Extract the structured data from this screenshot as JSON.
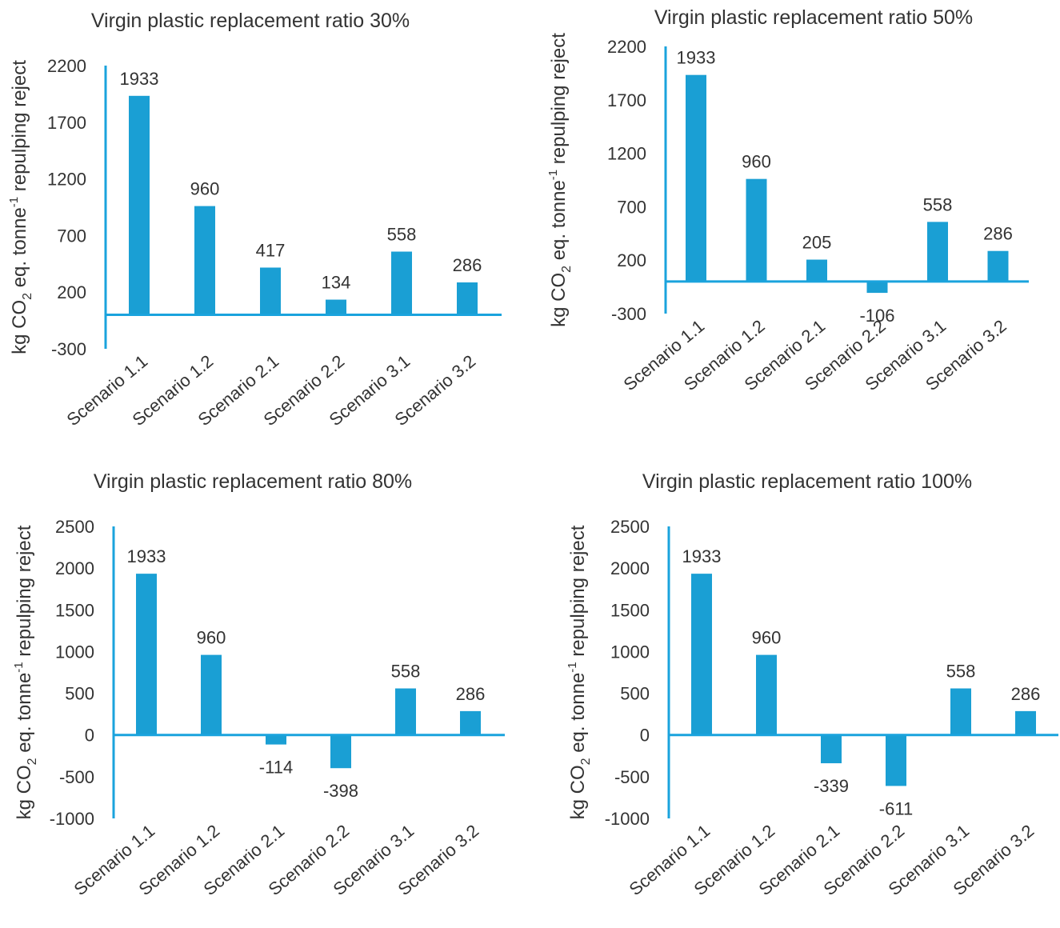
{
  "axis_color": "#1aa3dd",
  "bar_color": "#1a9fd4",
  "chart_data": [
    {
      "type": "bar",
      "title": "Virgin plastic replacement ratio 30%",
      "ylabel": {
        "pre": "kg CO",
        "sub": "2",
        "mid": " eq. tonne",
        "sup": "-1",
        "post": " repulping reject"
      },
      "categories": [
        "Scenario 1.1",
        "Scenario 1.2",
        "Scenario 2.1",
        "Scenario 2.2",
        "Scenario 3.1",
        "Scenario 3.2"
      ],
      "values": [
        1933,
        960,
        417,
        134,
        558,
        286
      ],
      "ylim": [
        -300,
        2200
      ],
      "yticks": [
        -300,
        200,
        700,
        1200,
        1700,
        2200
      ],
      "grid": false,
      "legend": "none"
    },
    {
      "type": "bar",
      "title": "Virgin plastic replacement ratio 50%",
      "ylabel": {
        "pre": "kg CO",
        "sub": "2",
        "mid": " eq. tonne",
        "sup": "-1",
        "post": " repulping reject"
      },
      "categories": [
        "Scenario 1.1",
        "Scenario 1.2",
        "Scenario 2.1",
        "Scenario 2.2",
        "Scenario 3.1",
        "Scenario 3.2"
      ],
      "values": [
        1933,
        960,
        205,
        -106,
        558,
        286
      ],
      "ylim": [
        -300,
        2200
      ],
      "yticks": [
        -300,
        200,
        700,
        1200,
        1700,
        2200
      ],
      "grid": false,
      "legend": "none"
    },
    {
      "type": "bar",
      "title": "Virgin plastic replacement ratio 80%",
      "ylabel": {
        "pre": "kg CO",
        "sub": "2",
        "mid": " eq. tonne",
        "sup": "-1",
        "post": " repulping reject"
      },
      "categories": [
        "Scenario 1.1",
        "Scenario 1.2",
        "Scenario 2.1",
        "Scenario 2.2",
        "Scenario 3.1",
        "Scenario 3.2"
      ],
      "values": [
        1933,
        960,
        -114,
        -398,
        558,
        286
      ],
      "ylim": [
        -1000,
        2500
      ],
      "yticks": [
        -1000,
        -500,
        0,
        500,
        1000,
        1500,
        2000,
        2500
      ],
      "grid": false,
      "legend": "none"
    },
    {
      "type": "bar",
      "title": "Virgin plastic replacement ratio 100%",
      "ylabel": {
        "pre": "kg CO",
        "sub": "2",
        "mid": " eq. tonne",
        "sup": "-1",
        "post": " repulping reject"
      },
      "categories": [
        "Scenario 1.1",
        "Scenario 1.2",
        "Scenario 2.1",
        "Scenario 2.2",
        "Scenario 3.1",
        "Scenario 3.2"
      ],
      "values": [
        1933,
        960,
        -339,
        -611,
        558,
        286
      ],
      "ylim": [
        -1000,
        2500
      ],
      "yticks": [
        -1000,
        -500,
        0,
        500,
        1000,
        1500,
        2000,
        2500
      ],
      "grid": false,
      "legend": "none"
    }
  ]
}
